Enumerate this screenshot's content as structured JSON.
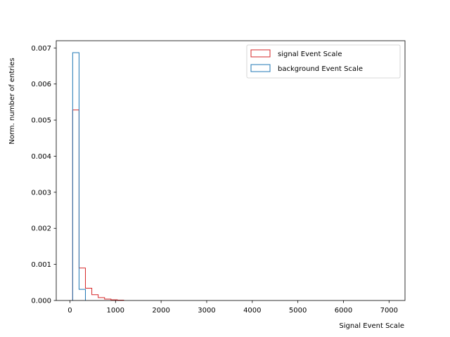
{
  "chart_data": {
    "type": "histogram",
    "title": "",
    "xlabel": "Signal Event Scale",
    "ylabel": "Norm. number of entries",
    "xlim": [
      -300,
      7350
    ],
    "ylim": [
      0,
      0.0072
    ],
    "xticks": [
      0,
      1000,
      2000,
      3000,
      4000,
      5000,
      6000,
      7000
    ],
    "yticks": [
      0.0,
      0.001,
      0.002,
      0.003,
      0.004,
      0.005,
      0.006,
      0.007
    ],
    "xtick_labels": [
      "0",
      "1000",
      "2000",
      "3000",
      "4000",
      "5000",
      "6000",
      "7000"
    ],
    "ytick_labels": [
      "0.000",
      "0.001",
      "0.002",
      "0.003",
      "0.004",
      "0.005",
      "0.006",
      "0.007"
    ],
    "grid": false,
    "legend_position": "top-right",
    "series": [
      {
        "name": "signal Event Scale",
        "color": "#d62728",
        "bin_edges": [
          60,
          200,
          340,
          480,
          620,
          760,
          900,
          1040,
          1180
        ],
        "values": [
          0.00528,
          0.0009,
          0.00034,
          0.00016,
          8e-05,
          4e-05,
          2e-05,
          1e-05
        ]
      },
      {
        "name": "background Event Scale",
        "color": "#1f77b4",
        "bin_edges": [
          60,
          200,
          340
        ],
        "values": [
          0.00687,
          0.00031
        ]
      }
    ]
  }
}
